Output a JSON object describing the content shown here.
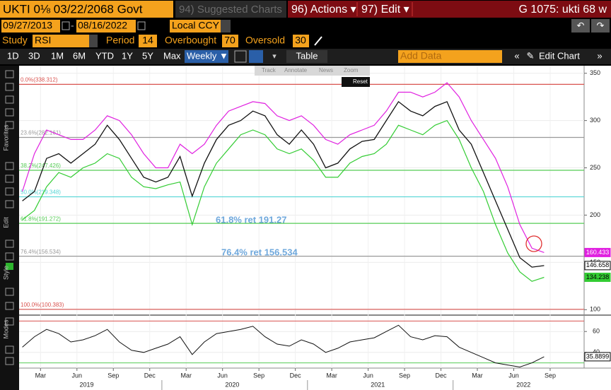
{
  "toolbar": {
    "security": "UKTI 0⅛ 03/22/2068 Govt",
    "suggested": "94) Suggested Charts",
    "actions": "96) Actions ▾",
    "edit": "97) Edit ▾",
    "ticker": "G 1075: ukti 68 w",
    "start_date": "09/27/2013",
    "end_date": "08/16/2022",
    "currency": "Local CCY",
    "study": {
      "label": "Study",
      "name": "RSI",
      "period_label": "Period",
      "period": 14,
      "overbought_label": "Overbought",
      "overbought": 70,
      "oversold_label": "Oversold",
      "oversold": 30
    },
    "periods": [
      "1D",
      "3D",
      "1M",
      "6M",
      "YTD",
      "1Y",
      "5Y",
      "Max",
      "Weekly ▼"
    ],
    "table": "Table",
    "add_data": "Add Data",
    "edit_chart": "Edit Chart"
  },
  "sidebar": [
    "Favorites",
    "Edit",
    "Style",
    "Modes"
  ],
  "chart_tools": [
    "Track",
    "Annotate",
    "News",
    "Zoom"
  ],
  "reset": "Reset",
  "chart_data": {
    "type": "line",
    "grid": true,
    "categories": [
      null,
      null,
      "Mar",
      null,
      null,
      "Jun",
      null,
      null,
      "Sep",
      null,
      null,
      "Dec",
      null,
      null,
      "Mar",
      null,
      null,
      "Jun",
      null,
      null,
      "Sep",
      null,
      null,
      "Dec",
      null,
      null,
      "Mar",
      null,
      null,
      "Jun",
      null,
      null,
      "Sep",
      null,
      null,
      "Dec",
      null,
      null,
      "Mar",
      null,
      null,
      "Jun",
      null,
      null,
      "Sep",
      null
    ],
    "x_groups": [
      "2019",
      "2020",
      "2021",
      "2022"
    ],
    "series": [
      {
        "color": "#111111",
        "values": [
          215,
          225,
          260,
          265,
          255,
          265,
          275,
          295,
          280,
          260,
          240,
          235,
          240,
          262,
          220,
          255,
          280,
          295,
          300,
          310,
          305,
          285,
          275,
          290,
          275,
          250,
          255,
          270,
          278,
          280,
          300,
          320,
          310,
          305,
          315,
          320,
          290,
          275,
          245,
          215,
          185,
          155,
          145,
          146.658,
          null,
          null
        ]
      },
      {
        "color": "#e020e0",
        "values": [
          225,
          265,
          290,
          285,
          280,
          280,
          290,
          305,
          300,
          285,
          265,
          250,
          250,
          275,
          265,
          275,
          295,
          310,
          315,
          320,
          318,
          305,
          300,
          305,
          295,
          280,
          275,
          285,
          290,
          295,
          310,
          330,
          330,
          325,
          330,
          340,
          325,
          300,
          280,
          260,
          230,
          190,
          165,
          160.433,
          null,
          null
        ]
      },
      {
        "color": "#33cc33",
        "values": [
          195,
          205,
          230,
          245,
          240,
          250,
          255,
          265,
          260,
          240,
          230,
          228,
          232,
          235,
          190,
          230,
          255,
          270,
          285,
          290,
          285,
          270,
          265,
          270,
          258,
          240,
          240,
          255,
          262,
          265,
          275,
          295,
          290,
          285,
          295,
          300,
          280,
          250,
          225,
          190,
          160,
          140,
          130,
          134.238,
          null,
          null
        ]
      }
    ],
    "ylim": [
      95,
      358
    ],
    "yticks": [
      100,
      150,
      200,
      250,
      300,
      350
    ],
    "fib_levels": [
      {
        "label": "0.0%(338.312)",
        "value": 338.312,
        "color": "#d9534f"
      },
      {
        "label": "23.6%(282.161)",
        "value": 282.161,
        "color": "#999999"
      },
      {
        "label": "38.2%(247.426)",
        "value": 247.426,
        "color": "#55cc55"
      },
      {
        "label": "50.0%(219.348)",
        "value": 219.348,
        "color": "#55d5d5"
      },
      {
        "label": "61.8%(191.272)",
        "value": 191.272,
        "color": "#55cc55"
      },
      {
        "label": "76.4%(156.534)",
        "value": 156.534,
        "color": "#999999"
      },
      {
        "label": "100.0%(100.383)",
        "value": 100.383,
        "color": "#d9534f"
      }
    ],
    "annotations": [
      "61.8% ret 191.27",
      "76.4% ret 156.534"
    ],
    "rsi": {
      "color": "#111111",
      "values": [
        45,
        55,
        62,
        58,
        50,
        52,
        56,
        62,
        50,
        42,
        40,
        44,
        48,
        55,
        38,
        50,
        58,
        60,
        62,
        65,
        55,
        48,
        46,
        52,
        48,
        40,
        44,
        50,
        52,
        54,
        60,
        66,
        55,
        52,
        56,
        55,
        45,
        40,
        35,
        30,
        28,
        26,
        30,
        35.8899,
        null,
        null
      ],
      "ylim": [
        25,
        75
      ],
      "yticks": [
        40,
        60
      ]
    }
  }
}
